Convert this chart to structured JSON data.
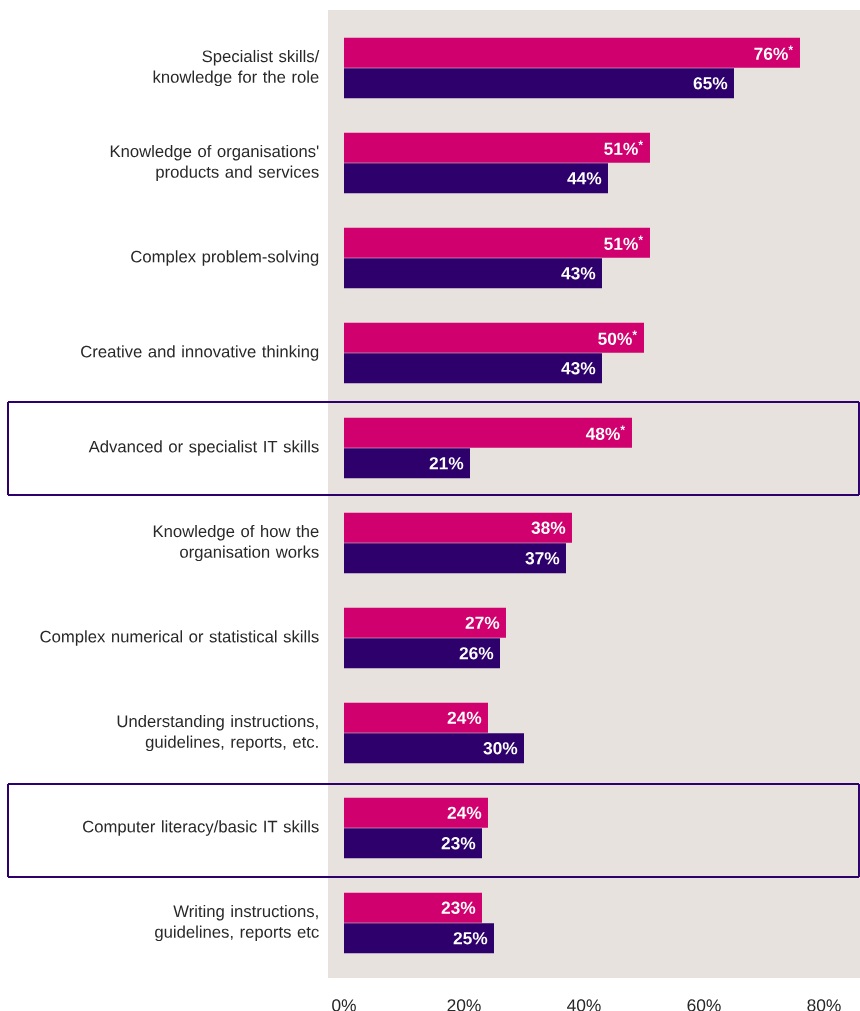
{
  "chart_data": {
    "type": "bar",
    "orientation": "horizontal",
    "categories": [
      "Specialist skills/ knowledge for the role",
      "Knowledge of organisations' products and services",
      "Complex problem-solving",
      "Creative and innovative thinking",
      "Advanced or specialist IT skills",
      "Knowledge of how the organisation works",
      "Complex numerical or statistical skills",
      "Understanding instructions, guidelines, reports, etc.",
      "Computer literacy/basic IT skills",
      "Writing instructions, guidelines, reports etc"
    ],
    "series": [
      {
        "color": "#d1006f",
        "values": [
          76,
          51,
          51,
          50,
          48,
          38,
          27,
          24,
          24,
          23
        ],
        "value_labels": [
          "76%$^{*}$",
          "51%$^{*}$",
          "51%$^{*}$",
          "50%$^{*}$",
          "48%$^{*}$",
          "38%",
          "27%",
          "24%",
          "24%",
          "23%"
        ]
      },
      {
        "color": "#2d006b",
        "values": [
          65,
          44,
          43,
          43,
          21,
          37,
          26,
          30,
          23,
          25
        ],
        "value_labels": [
          "65%",
          "44%",
          "43%",
          "43%",
          "21%",
          "37%",
          "26%",
          "30%",
          "23%",
          "25%"
        ]
      }
    ],
    "xlim": [
      0,
      86
    ],
    "xticks": [
      {
        "value": 0,
        "label": "0%"
      },
      {
        "value": 20,
        "label": "20%"
      },
      {
        "value": 40,
        "label": "40%"
      },
      {
        "value": 60,
        "label": "60%"
      },
      {
        "value": 80,
        "label": "80%"
      }
    ],
    "grid": false
  }
}
